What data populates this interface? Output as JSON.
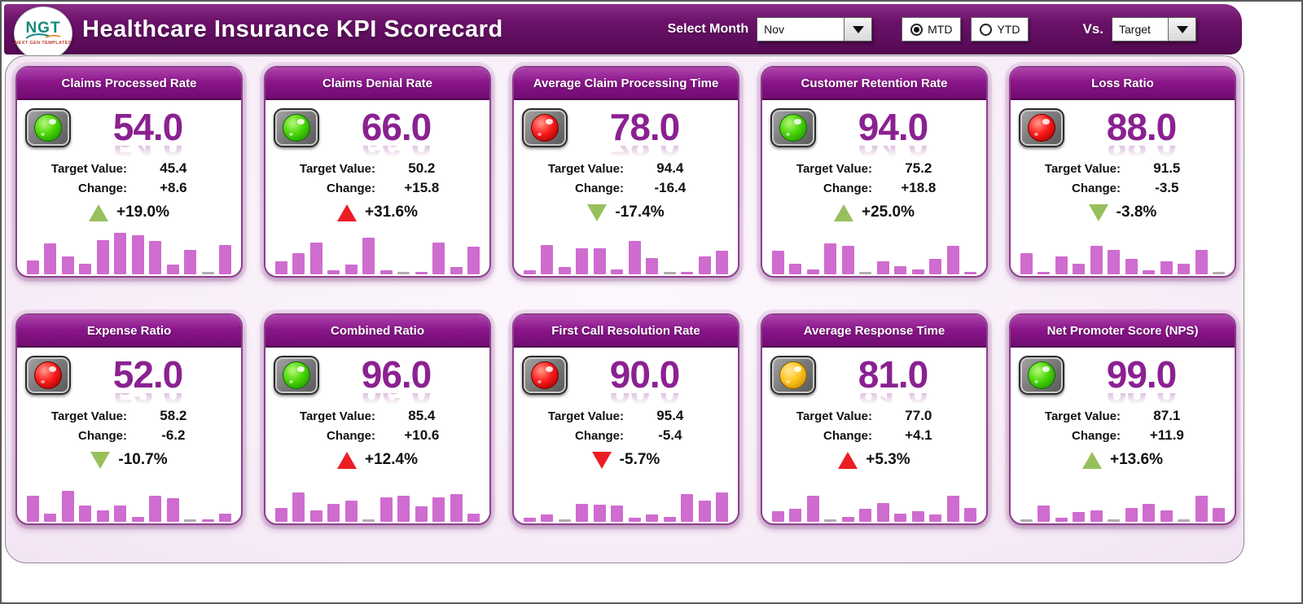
{
  "header": {
    "title": "Healthcare Insurance KPI Scorecard",
    "logo": {
      "text": "NGT",
      "subtext": "NEXT GEN TEMPLATES"
    },
    "select_month_label": "Select Month",
    "month_value": "Nov",
    "radio_mtd_label": "MTD",
    "radio_ytd_label": "YTD",
    "mtd_selected": true,
    "ytd_selected": false,
    "vs_label": "Vs.",
    "vs_value": "Target"
  },
  "labels": {
    "target": "Target Value:",
    "change": "Change:"
  },
  "colors": {
    "header_purple": "#6b116a",
    "card_header_purple": "#8a158a",
    "kpi_value_purple": "#8b2191",
    "bar_magenta": "#cf6ccf",
    "trend_green": "#97c05c",
    "trend_red": "#ec1c24",
    "light_green": "#4ad607",
    "light_red": "#fb1d1d",
    "light_yellow": "#ffc31e",
    "panel_pink": "#f6ebf7"
  },
  "cards": [
    {
      "title": "Claims Processed Rate",
      "status": "green",
      "value": "54.0",
      "target": "45.4",
      "change": "+8.6",
      "trend_dir": "up",
      "trend_color": "green",
      "trend_pct": "+19.0%",
      "bars": [
        30,
        65,
        38,
        22,
        72,
        88,
        82,
        70,
        20,
        52,
        3,
        62
      ]
    },
    {
      "title": "Claims Denial Rate",
      "status": "green",
      "value": "66.0",
      "target": "50.2",
      "change": "+15.8",
      "trend_dir": "up",
      "trend_color": "red",
      "trend_pct": "+31.6%",
      "bars": [
        28,
        45,
        68,
        8,
        20,
        78,
        8,
        3,
        6,
        68,
        16,
        58
      ]
    },
    {
      "title": "Average Claim Processing Time",
      "status": "red",
      "value": "78.0",
      "target": "94.4",
      "change": "-16.4",
      "trend_dir": "down",
      "trend_color": "green",
      "trend_pct": "-17.4%",
      "bars": [
        8,
        62,
        15,
        55,
        56,
        10,
        70,
        35,
        3,
        6,
        38,
        50
      ]
    },
    {
      "title": "Customer Retention Rate",
      "status": "green",
      "value": "94.0",
      "target": "75.2",
      "change": "+18.8",
      "trend_dir": "up",
      "trend_color": "green",
      "trend_pct": "+25.0%",
      "bars": [
        50,
        22,
        10,
        65,
        60,
        3,
        28,
        18,
        10,
        32,
        60,
        5
      ]
    },
    {
      "title": "Loss Ratio",
      "status": "red",
      "value": "88.0",
      "target": "91.5",
      "change": "-3.5",
      "trend_dir": "down",
      "trend_color": "green",
      "trend_pct": "-3.8%",
      "bars": [
        45,
        5,
        38,
        22,
        60,
        52,
        32,
        8,
        28,
        22,
        52,
        3
      ]
    },
    {
      "title": "Expense Ratio",
      "status": "red",
      "value": "52.0",
      "target": "58.2",
      "change": "-6.2",
      "trend_dir": "down",
      "trend_color": "green",
      "trend_pct": "-10.7%",
      "bars": [
        55,
        18,
        65,
        35,
        25,
        35,
        10,
        55,
        50,
        3,
        5,
        18
      ]
    },
    {
      "title": "Combined Ratio",
      "status": "green",
      "value": "96.0",
      "target": "85.4",
      "change": "+10.6",
      "trend_dir": "up",
      "trend_color": "red",
      "trend_pct": "+12.4%",
      "bars": [
        30,
        62,
        25,
        38,
        45,
        3,
        52,
        55,
        32,
        52,
        58,
        18
      ]
    },
    {
      "title": "First Call Resolution Rate",
      "status": "red",
      "value": "90.0",
      "target": "95.4",
      "change": "-5.4",
      "trend_dir": "down",
      "trend_color": "red",
      "trend_pct": "-5.7%",
      "bars": [
        8,
        15,
        3,
        38,
        36,
        34,
        8,
        15,
        10,
        58,
        45,
        62
      ]
    },
    {
      "title": "Average Response Time",
      "status": "yellow",
      "value": "81.0",
      "target": "77.0",
      "change": "+4.1",
      "trend_dir": "up",
      "trend_color": "red",
      "trend_pct": "+5.3%",
      "bars": [
        22,
        28,
        55,
        3,
        10,
        28,
        40,
        18,
        22,
        15,
        55,
        30
      ]
    },
    {
      "title": "Net Promoter Score (NPS)",
      "status": "green",
      "value": "99.0",
      "target": "87.1",
      "change": "+11.9",
      "trend_dir": "up",
      "trend_color": "green",
      "trend_pct": "+13.6%",
      "bars": [
        3,
        35,
        8,
        20,
        25,
        3,
        30,
        38,
        25,
        3,
        55,
        30
      ]
    }
  ]
}
